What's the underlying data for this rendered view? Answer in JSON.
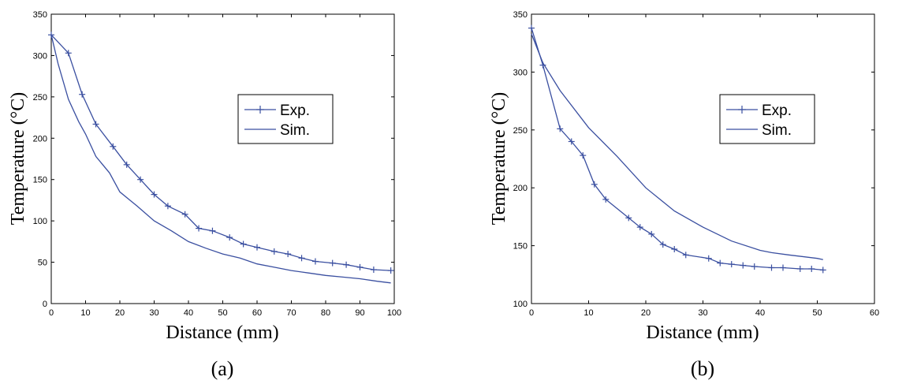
{
  "chart_data": [
    {
      "type": "line",
      "panel_label": "(a)",
      "xlabel": "Distance (mm)",
      "ylabel": "Temperature (°C)",
      "xlim": [
        0,
        100
      ],
      "ylim": [
        0,
        350
      ],
      "xticks": [
        0,
        10,
        20,
        30,
        40,
        50,
        60,
        70,
        80,
        90,
        100
      ],
      "yticks": [
        0,
        50,
        100,
        150,
        200,
        250,
        300,
        350
      ],
      "legend_position": "upper-right-center",
      "series": [
        {
          "name": "Exp.",
          "marker": "+",
          "color": "#3a4fa0",
          "x": [
            0,
            5,
            9,
            13,
            18,
            22,
            26,
            30,
            34,
            39,
            43,
            47,
            52,
            56,
            60,
            65,
            69,
            73,
            77,
            82,
            86,
            90,
            94,
            99
          ],
          "y": [
            325,
            303,
            253,
            217,
            190,
            168,
            150,
            132,
            118,
            108,
            91,
            88,
            80,
            72,
            68,
            63,
            60,
            55,
            51,
            49,
            47,
            44,
            41,
            40
          ]
        },
        {
          "name": "Sim.",
          "marker": "none",
          "color": "#3a4fa0",
          "x": [
            0,
            2,
            5,
            8,
            10,
            13,
            17,
            20,
            25,
            30,
            35,
            40,
            45,
            50,
            55,
            60,
            65,
            70,
            75,
            80,
            85,
            90,
            95,
            99
          ],
          "y": [
            325,
            290,
            247,
            220,
            205,
            178,
            158,
            135,
            118,
            100,
            88,
            75,
            67,
            60,
            55,
            48,
            44,
            40,
            37,
            34,
            32,
            30,
            27,
            25
          ]
        }
      ]
    },
    {
      "type": "line",
      "panel_label": "(b)",
      "xlabel": "Distance (mm)",
      "ylabel": "Temperature (°C)",
      "xlim": [
        0,
        60
      ],
      "ylim": [
        100,
        350
      ],
      "xticks": [
        0,
        10,
        20,
        30,
        40,
        50,
        60
      ],
      "yticks": [
        100,
        150,
        200,
        250,
        300,
        350
      ],
      "legend_position": "upper-right-center",
      "series": [
        {
          "name": "Exp.",
          "marker": "+",
          "color": "#3a4fa0",
          "x": [
            0,
            2,
            5,
            7,
            9,
            11,
            13,
            17,
            19,
            21,
            23,
            25,
            27,
            31,
            33,
            35,
            37,
            39,
            42,
            44,
            47,
            49,
            51
          ],
          "y": [
            338,
            306,
            251,
            240,
            228,
            203,
            190,
            174,
            166,
            160,
            151,
            147,
            142,
            139,
            135,
            134,
            133,
            132,
            131,
            131,
            130,
            130,
            129
          ]
        },
        {
          "name": "Sim.",
          "marker": "none",
          "color": "#3a4fa0",
          "x": [
            0,
            2,
            5,
            10,
            15,
            20,
            25,
            30,
            35,
            40,
            42,
            45,
            50,
            51
          ],
          "y": [
            333,
            308,
            284,
            252,
            227,
            200,
            180,
            166,
            154,
            146,
            144,
            142,
            139,
            138
          ]
        }
      ]
    }
  ]
}
